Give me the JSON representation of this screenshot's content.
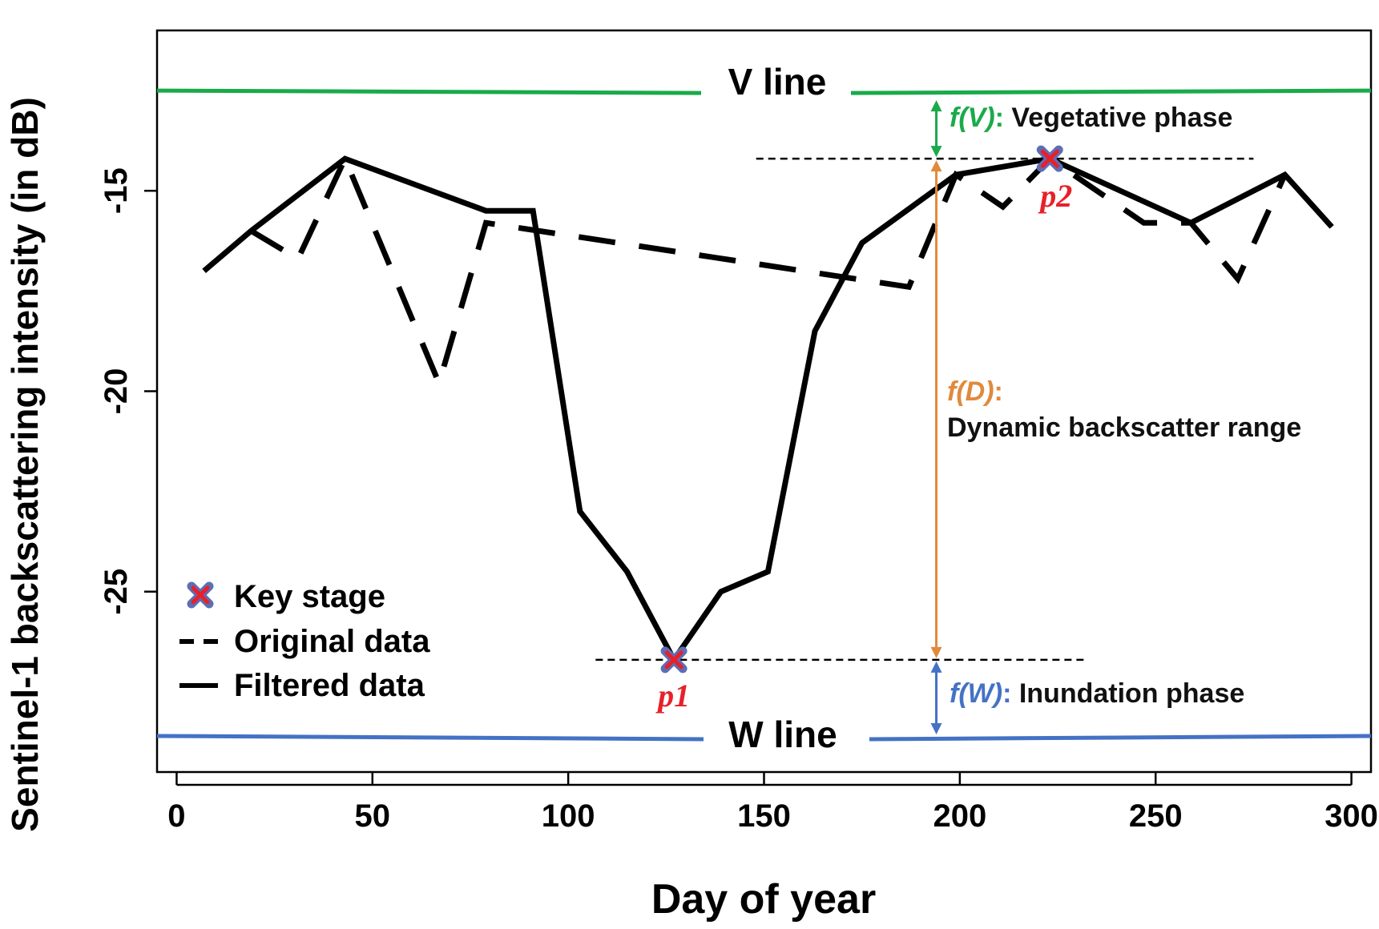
{
  "chart_data": {
    "type": "line",
    "xlabel": "Day of year",
    "ylabel": "Sentinel-1 backscattering intensity (in dB)",
    "xlim": [
      -5,
      305
    ],
    "ylim": [
      -29.5,
      -11.0
    ],
    "xticks": [
      0,
      50,
      100,
      150,
      200,
      250,
      300
    ],
    "yticks": [
      -15,
      -20,
      -25
    ],
    "series": [
      {
        "name": "Filtered data",
        "style": "solid",
        "x": [
          7,
          19,
          43,
          79,
          91,
          103,
          115,
          127,
          139,
          151,
          163,
          175,
          199,
          223,
          259,
          283,
          295
        ],
        "y": [
          -17.0,
          -16.0,
          -14.2,
          -15.5,
          -15.5,
          -23.0,
          -24.5,
          -26.7,
          -25.0,
          -24.5,
          -18.5,
          -16.3,
          -14.6,
          -14.2,
          -15.8,
          -14.6,
          -15.9
        ]
      },
      {
        "name": "Original data",
        "style": "dashed",
        "x": [
          19,
          31,
          43,
          67,
          79,
          187,
          199,
          211,
          223,
          247,
          259,
          271,
          283
        ],
        "y": [
          -16.0,
          -16.7,
          -14.2,
          -19.8,
          -15.8,
          -17.4,
          -14.6,
          -15.4,
          -14.2,
          -15.8,
          -15.8,
          -17.2,
          -14.6
        ]
      }
    ],
    "key_stages": [
      {
        "label": "p1",
        "x": 127,
        "y": -26.7
      },
      {
        "label": "p2",
        "x": 223,
        "y": -14.2
      }
    ],
    "v_line": {
      "label": "V line",
      "y": -12.5,
      "color": "#1aaa4a"
    },
    "w_line": {
      "label": "W line",
      "y": -28.6,
      "color": "#4472c4"
    },
    "ref_levels": {
      "upper": -14.2,
      "lower": -26.7,
      "x_from_upper": 148,
      "x_to_upper": 275,
      "x_from_lower": 107,
      "x_to_lower": 232
    },
    "arrows_x": 194,
    "annotations": {
      "fv_label": "f(V)",
      "fv_sep": ":",
      "fv_text": " Vegetative phase",
      "fv_color": "#1aaa4a",
      "fd_label": "f(D)",
      "fd_sep": ":",
      "fd_text": "Dynamic backscatter range",
      "fd_color": "#e08a3c",
      "fw_label": "f(W)",
      "fw_sep": ":",
      "fw_text": " Inundation phase",
      "fw_color": "#4472c4"
    },
    "legend": {
      "position": "bottom-left",
      "entries": [
        "Key stage",
        "Original data",
        "Filtered data"
      ]
    },
    "marker_colors": {
      "fill": "#5b6fb5",
      "cross": "#e8202a"
    },
    "point_label_color": "#e8202a"
  }
}
